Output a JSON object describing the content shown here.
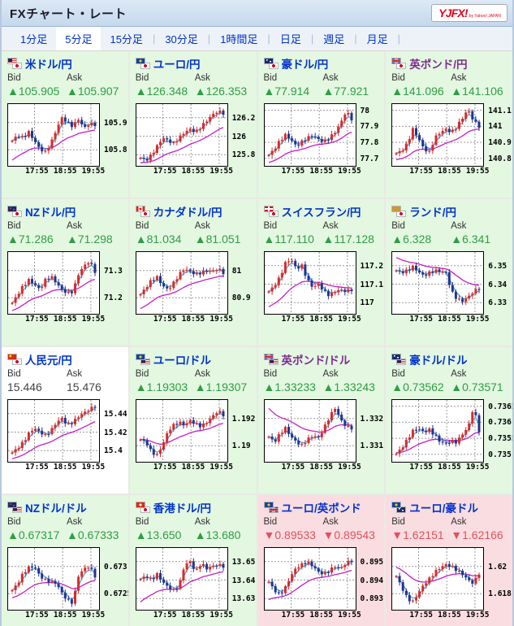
{
  "header": {
    "title": "FXチャート・レート",
    "logo": {
      "main": "YJFX!",
      "sub": "by Yahoo! JAPAN"
    }
  },
  "tabs": [
    {
      "label": "1分足",
      "selected": false
    },
    {
      "label": "5分足",
      "selected": true
    },
    {
      "label": "15分足",
      "selected": false
    },
    {
      "label": "30分足",
      "selected": false
    },
    {
      "label": "1時間足",
      "selected": false
    },
    {
      "label": "日足",
      "selected": false
    },
    {
      "label": "週足",
      "selected": false
    },
    {
      "label": "月足",
      "selected": false
    }
  ],
  "tab_separator": "|",
  "labels": {
    "bid": "Bid",
    "ask": "Ask"
  },
  "symbols": {
    "up": "▲",
    "down": "▼",
    "none": ""
  },
  "colors": {
    "up_value": "#2f9e44",
    "down_value": "#e0525c",
    "flat_value": "#444444",
    "bg_up": "#e3f7e1",
    "bg_down": "#fadde1",
    "bg_flat": "#ffffff",
    "candle_up": "#d92b2b",
    "candle_down": "#22348f",
    "ma_short": "#3fa8dc",
    "ma_long": "#c61fc6",
    "link_blue": "#0133cc",
    "link_visited": "#7d2d8e",
    "logo_red": "#e60018"
  },
  "chart_x_labels": [
    "17:55",
    "18:55",
    "19:55"
  ],
  "panels": [
    {
      "name": "米ドル/円",
      "flags": [
        "us",
        "jp"
      ],
      "visited": false,
      "bid": "105.905",
      "ask": "105.907",
      "direction": "up",
      "bg": "green",
      "y_ticks": [
        "105.9",
        "105.8"
      ],
      "ma_start": 0.02,
      "shape": [
        0.4,
        0.5,
        0.45,
        0.55,
        0.4,
        0.25,
        0.2,
        0.35,
        0.6,
        0.8,
        0.72,
        0.65,
        0.78,
        0.62,
        0.7,
        0.68
      ]
    },
    {
      "name": "ユーロ/円",
      "flags": [
        "eu",
        "jp"
      ],
      "visited": false,
      "bid": "126.348",
      "ask": "126.353",
      "direction": "up",
      "bg": "green",
      "y_ticks": [
        "126.2",
        "126",
        "125.8"
      ],
      "ma_start": 0.0,
      "shape": [
        0.1,
        0.05,
        0.15,
        0.3,
        0.45,
        0.4,
        0.35,
        0.45,
        0.55,
        0.6,
        0.55,
        0.65,
        0.75,
        0.85,
        0.92,
        0.88
      ]
    },
    {
      "name": "豪ドル/円",
      "flags": [
        "au",
        "jp"
      ],
      "visited": false,
      "bid": "77.914",
      "ask": "77.921",
      "direction": "up",
      "bg": "green",
      "y_ticks": [
        "78",
        "77.9",
        "77.8",
        "77.7"
      ],
      "ma_start": 0.0,
      "shape": [
        0.15,
        0.25,
        0.4,
        0.5,
        0.42,
        0.3,
        0.38,
        0.45,
        0.5,
        0.42,
        0.38,
        0.45,
        0.55,
        0.7,
        0.92,
        0.78
      ]
    },
    {
      "name": "英ポンド/円",
      "flags": [
        "gb",
        "jp"
      ],
      "visited": true,
      "bid": "141.096",
      "ask": "141.106",
      "direction": "up",
      "bg": "green",
      "y_ticks": [
        "141.1",
        "141",
        "140.9",
        "140.8"
      ],
      "ma_start": 0.05,
      "shape": [
        0.18,
        0.22,
        0.35,
        0.6,
        0.45,
        0.25,
        0.2,
        0.45,
        0.55,
        0.6,
        0.55,
        0.65,
        0.8,
        0.95,
        0.75,
        0.65
      ]
    },
    {
      "name": "NZドル/円",
      "flags": [
        "nz",
        "jp"
      ],
      "visited": false,
      "bid": "71.286",
      "ask": "71.298",
      "direction": "up",
      "bg": "green",
      "y_ticks": [
        "71.3",
        "71.2"
      ],
      "ma_start": 0.0,
      "shape": [
        0.15,
        0.3,
        0.45,
        0.55,
        0.48,
        0.38,
        0.55,
        0.62,
        0.5,
        0.38,
        0.32,
        0.35,
        0.65,
        0.8,
        0.88,
        0.7
      ]
    },
    {
      "name": "カナダドル/円",
      "flags": [
        "ca",
        "jp"
      ],
      "visited": false,
      "bid": "81.034",
      "ask": "81.051",
      "direction": "up",
      "bg": "green",
      "y_ticks": [
        "81",
        "80.9"
      ],
      "ma_start": 0.02,
      "shape": [
        0.3,
        0.42,
        0.55,
        0.6,
        0.45,
        0.38,
        0.5,
        0.65,
        0.75,
        0.7,
        0.65,
        0.68,
        0.72,
        0.7,
        0.75,
        0.68
      ]
    },
    {
      "name": "スイスフラン/円",
      "flags": [
        "ch",
        "jp"
      ],
      "visited": false,
      "bid": "117.110",
      "ask": "117.128",
      "direction": "up",
      "bg": "green",
      "y_ticks": [
        "117.2",
        "117.1",
        "117"
      ],
      "ma_start": 0.05,
      "shape": [
        0.35,
        0.45,
        0.6,
        0.85,
        0.92,
        0.75,
        0.8,
        0.55,
        0.42,
        0.48,
        0.35,
        0.28,
        0.35,
        0.38,
        0.35,
        0.38
      ]
    },
    {
      "name": "ランド/円",
      "flags": [
        "za",
        "jp"
      ],
      "visited": false,
      "bid": "6.328",
      "ask": "6.341",
      "direction": "up",
      "bg": "green",
      "y_ticks": [
        "6.35",
        "6.34",
        "6.33"
      ],
      "ma_start": 0.97,
      "shape": [
        0.72,
        0.68,
        0.72,
        0.78,
        0.7,
        0.62,
        0.68,
        0.72,
        0.7,
        0.68,
        0.35,
        0.22,
        0.18,
        0.25,
        0.35,
        0.4
      ]
    },
    {
      "name": "人民元/円",
      "flags": [
        "cn",
        "jp"
      ],
      "visited": false,
      "bid": "15.446",
      "ask": "15.476",
      "direction": "none",
      "bg": "white",
      "y_ticks": [
        "15.44",
        "15.42",
        "15.4"
      ],
      "ma_start": 0.0,
      "shape": [
        0.12,
        0.2,
        0.3,
        0.45,
        0.55,
        0.48,
        0.42,
        0.5,
        0.65,
        0.72,
        0.6,
        0.65,
        0.75,
        0.82,
        0.88,
        0.93
      ]
    },
    {
      "name": "ユーロ/ドル",
      "flags": [
        "eu",
        "us"
      ],
      "visited": false,
      "bid": "1.19303",
      "ask": "1.19307",
      "direction": "up",
      "bg": "green",
      "y_ticks": [
        "1.192",
        "1.19"
      ],
      "ma_start": 0.35,
      "shape": [
        0.35,
        0.3,
        0.12,
        0.08,
        0.25,
        0.5,
        0.6,
        0.65,
        0.6,
        0.68,
        0.62,
        0.58,
        0.65,
        0.75,
        0.85,
        0.78
      ]
    },
    {
      "name": "英ポンド/ドル",
      "flags": [
        "gb",
        "us"
      ],
      "visited": true,
      "bid": "1.33233",
      "ask": "1.33243",
      "direction": "up",
      "bg": "green",
      "y_ticks": [
        "1.332",
        "1.331"
      ],
      "ma_start": 0.95,
      "shape": [
        0.4,
        0.3,
        0.45,
        0.55,
        0.4,
        0.3,
        0.25,
        0.35,
        0.42,
        0.38,
        0.55,
        0.75,
        0.9,
        0.7,
        0.58,
        0.55
      ]
    },
    {
      "name": "豪ドル/ドル",
      "flags": [
        "au",
        "us"
      ],
      "visited": false,
      "bid": "0.73562",
      "ask": "0.73571",
      "direction": "up",
      "bg": "green",
      "y_ticks": [
        "0.7365",
        "0.736",
        "0.7355",
        "0.735"
      ],
      "ma_start": 0.12,
      "shape": [
        0.1,
        0.2,
        0.35,
        0.5,
        0.55,
        0.48,
        0.52,
        0.42,
        0.3,
        0.28,
        0.32,
        0.3,
        0.45,
        0.55,
        0.92,
        0.5
      ]
    },
    {
      "name": "NZドル/ドル",
      "flags": [
        "nz",
        "us"
      ],
      "visited": false,
      "bid": "0.67317",
      "ask": "0.67333",
      "direction": "up",
      "bg": "green",
      "y_ticks": [
        "0.673",
        "0.6725"
      ],
      "ma_start": 0.15,
      "shape": [
        0.3,
        0.42,
        0.6,
        0.7,
        0.72,
        0.55,
        0.48,
        0.45,
        0.42,
        0.25,
        0.12,
        0.08,
        0.55,
        0.68,
        0.72,
        0.55
      ]
    },
    {
      "name": "香港ドル/円",
      "flags": [
        "hk",
        "jp"
      ],
      "visited": false,
      "bid": "13.650",
      "ask": "13.680",
      "direction": "up",
      "bg": "green",
      "y_ticks": [
        "13.65",
        "13.64",
        "13.63"
      ],
      "ma_start": 0.05,
      "shape": [
        0.5,
        0.55,
        0.48,
        0.58,
        0.45,
        0.35,
        0.3,
        0.38,
        0.75,
        0.8,
        0.62,
        0.78,
        0.68,
        0.72,
        0.75,
        0.72
      ]
    },
    {
      "name": "ユーロ/英ポンド",
      "flags": [
        "eu",
        "gb"
      ],
      "visited": false,
      "bid": "0.89533",
      "ask": "0.89543",
      "direction": "down",
      "bg": "pink",
      "y_ticks": [
        "0.895",
        "0.894",
        "0.893"
      ],
      "ma_start": 0.1,
      "shape": [
        0.45,
        0.3,
        0.22,
        0.35,
        0.55,
        0.7,
        0.75,
        0.8,
        0.72,
        0.62,
        0.58,
        0.65,
        0.72,
        0.68,
        0.78,
        0.82
      ]
    },
    {
      "name": "ユーロ/豪ドル",
      "flags": [
        "eu",
        "au"
      ],
      "visited": false,
      "bid": "1.62151",
      "ask": "1.62166",
      "direction": "down",
      "bg": "pink",
      "y_ticks": [
        "1.62",
        "1.618"
      ],
      "ma_start": 0.72,
      "shape": [
        0.55,
        0.35,
        0.15,
        0.1,
        0.25,
        0.4,
        0.5,
        0.62,
        0.7,
        0.75,
        0.72,
        0.65,
        0.58,
        0.48,
        0.42,
        0.6
      ]
    }
  ]
}
